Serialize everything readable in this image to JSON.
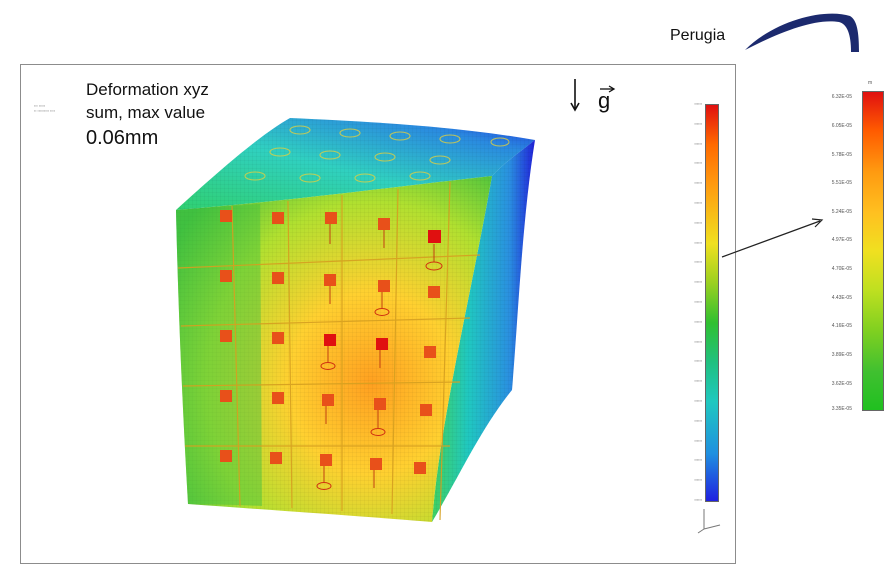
{
  "header": {
    "logo_text": "Perugia"
  },
  "caption": {
    "line1": "Deformation xyz",
    "line2": "sum, max value",
    "value": "0.06mm"
  },
  "gravity": {
    "symbol": "g"
  },
  "legend_zoom": {
    "unit": "m",
    "ticks": [
      "6.32E-05",
      "6.05E-05",
      "5.78E-05",
      "5.51E-05",
      "5.24E-05",
      "4.97E-05",
      "4.70E-05",
      "4.43E-05",
      "4.16E-05",
      "3.89E-05",
      "3.62E-05",
      "3.35E-05"
    ]
  },
  "colors": {
    "max": "#e01010",
    "high": "#ff8a00",
    "mid_high": "#f0e020",
    "mid": "#40c030",
    "mid_low": "#20c8c0",
    "min": "#2020e0",
    "logo": "#1c2a6e"
  }
}
